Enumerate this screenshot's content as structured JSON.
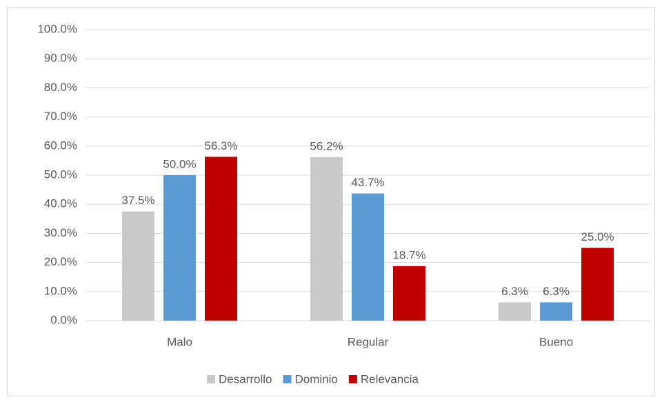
{
  "chart_data": {
    "type": "bar",
    "categories": [
      "Malo",
      "Regular",
      "Bueno"
    ],
    "series": [
      {
        "name": "Desarrollo",
        "color": "#c9c9c9",
        "values": [
          37.5,
          56.2,
          6.3
        ],
        "value_labels": [
          "37.5%",
          "56.2%",
          "6.3%"
        ]
      },
      {
        "name": "Dominio",
        "color": "#5b9bd5",
        "values": [
          50.0,
          43.7,
          6.3
        ],
        "value_labels": [
          "50.0%",
          "43.7%",
          "6.3%"
        ]
      },
      {
        "name": "Relevancia",
        "color": "#c00000",
        "values": [
          56.3,
          18.7,
          25.0
        ],
        "value_labels": [
          "56.3%",
          "18.7%",
          "25.0%"
        ]
      }
    ],
    "ylim": [
      0,
      100
    ],
    "yticks": [
      {
        "value": 0,
        "label": "0.0%"
      },
      {
        "value": 10,
        "label": "10.0%"
      },
      {
        "value": 20,
        "label": "20.0%"
      },
      {
        "value": 30,
        "label": "30.0%"
      },
      {
        "value": 40,
        "label": "40.0%"
      },
      {
        "value": 50,
        "label": "50.0%"
      },
      {
        "value": 60,
        "label": "60.0%"
      },
      {
        "value": 70,
        "label": "70.0%"
      },
      {
        "value": 80,
        "label": "80.0%"
      },
      {
        "value": 90,
        "label": "90.0%"
      },
      {
        "value": 100,
        "label": "100.0%"
      }
    ],
    "grid": true,
    "legend": "bottom"
  }
}
